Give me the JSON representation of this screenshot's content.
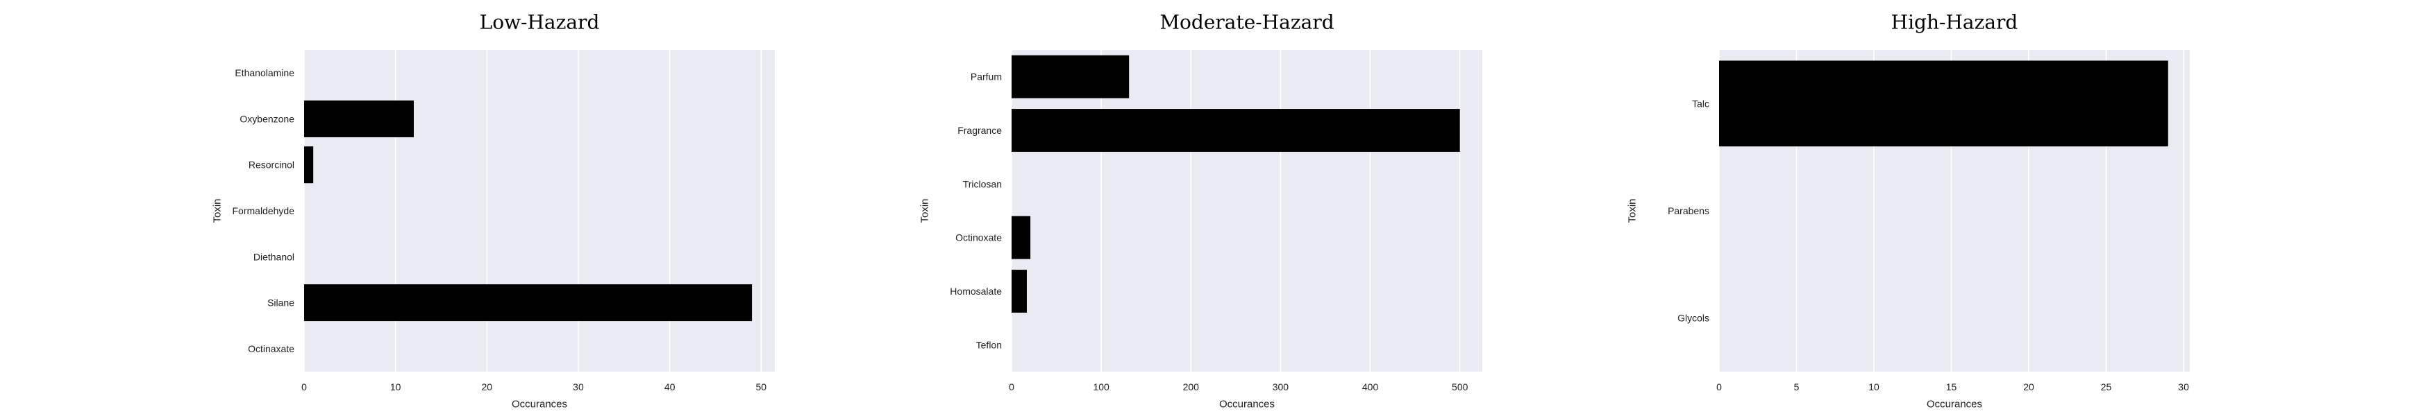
{
  "chart_data": [
    {
      "type": "bar",
      "orientation": "horizontal",
      "title": "Low-Hazard",
      "xlabel": "Occurances",
      "ylabel": "Toxin",
      "categories": [
        "Ethanolamine",
        "Oxybenzone",
        "Resorcinol",
        "Formaldehyde",
        "Diethanol",
        "Silane",
        "Octinaxate"
      ],
      "values": [
        0,
        12,
        1,
        0,
        0,
        49,
        0
      ],
      "xlim": [
        0,
        51.5
      ],
      "xticks": [
        0,
        10,
        20,
        30,
        40,
        50
      ],
      "grid": true,
      "bar_color": "#000000",
      "background_color": "#eaeaf2"
    },
    {
      "type": "bar",
      "orientation": "horizontal",
      "title": "Moderate-Hazard",
      "xlabel": "Occurances",
      "ylabel": "Toxin",
      "categories": [
        "Parfum",
        "Fragrance",
        "Triclosan",
        "Octinoxate",
        "Homosalate",
        "Teflon"
      ],
      "values": [
        131,
        500,
        0,
        21,
        17,
        0
      ],
      "xlim": [
        0,
        525
      ],
      "xticks": [
        0,
        100,
        200,
        300,
        400,
        500
      ],
      "grid": true,
      "bar_color": "#000000",
      "background_color": "#eaeaf2"
    },
    {
      "type": "bar",
      "orientation": "horizontal",
      "title": "High-Hazard",
      "xlabel": "Occurances",
      "ylabel": "Toxin",
      "categories": [
        "Talc",
        "Parabens",
        "Glycols"
      ],
      "values": [
        29,
        0,
        0
      ],
      "xlim": [
        0,
        30.4
      ],
      "xticks": [
        0,
        5,
        10,
        15,
        20,
        25,
        30
      ],
      "grid": true,
      "bar_color": "#000000",
      "background_color": "#eaeaf2"
    }
  ]
}
